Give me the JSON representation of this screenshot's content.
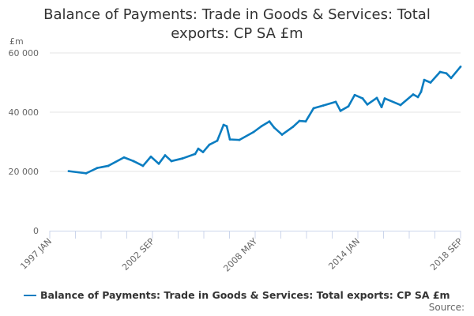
{
  "chart_data": {
    "type": "line",
    "title": "Balance of Payments: Trade in Goods & Services: Total exports: CP SA £m",
    "ylabel": "£m",
    "xlabel": "",
    "ylim": [
      0,
      60000
    ],
    "yticks": [
      "0",
      "20 000",
      "40 000",
      "60 000"
    ],
    "ytick_values": [
      0,
      20000,
      40000,
      60000
    ],
    "xlim": [
      "1997-01",
      "2018-09"
    ],
    "xticks": [
      "1997 JAN",
      "2002 SEP",
      "2008 MAY",
      "2014 JAN",
      "2018 SEP"
    ],
    "grid": true,
    "legend_position": "bottom",
    "series": [
      {
        "name": "Balance of Payments: Trade in Goods & Services: Total exports: CP SA £m",
        "color": "#0b7dc1",
        "points": [
          [
            "1998-01",
            20100
          ],
          [
            "1998-12",
            19370
          ],
          [
            "1999-07",
            21160
          ],
          [
            "2000-02",
            21880
          ],
          [
            "2000-12",
            24730
          ],
          [
            "2001-06",
            23480
          ],
          [
            "2001-12",
            21880
          ],
          [
            "2002-05",
            25000
          ],
          [
            "2002-10",
            22590
          ],
          [
            "2003-02",
            25450
          ],
          [
            "2003-06",
            23480
          ],
          [
            "2004-01",
            24380
          ],
          [
            "2004-09",
            25890
          ],
          [
            "2004-11",
            27680
          ],
          [
            "2005-02",
            26520
          ],
          [
            "2005-06",
            29020
          ],
          [
            "2005-11",
            30360
          ],
          [
            "2006-03",
            35720
          ],
          [
            "2006-05",
            35270
          ],
          [
            "2006-07",
            30800
          ],
          [
            "2007-01",
            30630
          ],
          [
            "2007-10",
            33300
          ],
          [
            "2008-03",
            35270
          ],
          [
            "2008-08",
            36880
          ],
          [
            "2008-11",
            34820
          ],
          [
            "2009-04",
            32410
          ],
          [
            "2009-11",
            35090
          ],
          [
            "2010-03",
            37060
          ],
          [
            "2010-07",
            36880
          ],
          [
            "2010-12",
            41340
          ],
          [
            "2011-06",
            42240
          ],
          [
            "2012-02",
            43490
          ],
          [
            "2012-05",
            40450
          ],
          [
            "2012-10",
            41970
          ],
          [
            "2013-02",
            45810
          ],
          [
            "2013-07",
            44650
          ],
          [
            "2013-10",
            42590
          ],
          [
            "2014-04",
            44830
          ],
          [
            "2014-07",
            41700
          ],
          [
            "2014-09",
            44650
          ],
          [
            "2015-07",
            42410
          ],
          [
            "2016-03",
            45990
          ],
          [
            "2016-06",
            45090
          ],
          [
            "2016-08",
            46880
          ],
          [
            "2016-10",
            50900
          ],
          [
            "2017-02",
            50000
          ],
          [
            "2017-08",
            53580
          ],
          [
            "2017-12",
            53130
          ],
          [
            "2018-03",
            51520
          ],
          [
            "2018-09",
            55360
          ]
        ]
      }
    ]
  },
  "source_label": "Source:"
}
